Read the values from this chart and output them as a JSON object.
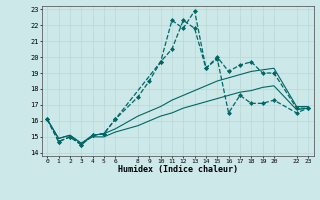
{
  "xlabel": "Humidex (Indice chaleur)",
  "bg_color": "#cde8e8",
  "grid_color": "#b8d8d8",
  "line_color": "#006666",
  "xlim": [
    -0.5,
    23.5
  ],
  "ylim": [
    13.8,
    23.2
  ],
  "xticks": [
    0,
    1,
    2,
    3,
    4,
    5,
    6,
    8,
    9,
    10,
    11,
    12,
    13,
    14,
    15,
    16,
    17,
    18,
    19,
    20,
    22,
    23
  ],
  "yticks": [
    14,
    15,
    16,
    17,
    18,
    19,
    20,
    21,
    22,
    23
  ],
  "lines": [
    {
      "x": [
        0,
        1,
        2,
        3,
        4,
        5,
        6,
        10,
        11,
        12,
        13,
        14,
        15,
        16,
        17,
        18,
        19,
        20,
        22,
        23
      ],
      "y": [
        16.1,
        14.7,
        15.0,
        14.5,
        15.1,
        15.2,
        16.1,
        19.7,
        22.3,
        21.8,
        22.9,
        19.3,
        20.0,
        19.1,
        19.5,
        19.7,
        19.0,
        19.0,
        16.8,
        16.8
      ],
      "marker": "D",
      "markersize": 2.0,
      "linewidth": 0.9,
      "linestyle": "--"
    },
    {
      "x": [
        0,
        1,
        2,
        3,
        4,
        5,
        6,
        8,
        9,
        10,
        11,
        12,
        13,
        14,
        15,
        16,
        17,
        18,
        19,
        20,
        22,
        23
      ],
      "y": [
        16.1,
        14.7,
        15.0,
        14.5,
        15.1,
        15.2,
        16.1,
        17.5,
        18.5,
        19.7,
        20.5,
        22.3,
        21.8,
        19.3,
        19.9,
        16.5,
        17.6,
        17.1,
        17.1,
        17.3,
        16.5,
        16.8
      ],
      "marker": "D",
      "markersize": 2.0,
      "linewidth": 0.9,
      "linestyle": "--"
    },
    {
      "x": [
        0,
        1,
        2,
        3,
        4,
        5,
        6,
        8,
        9,
        10,
        11,
        12,
        13,
        14,
        15,
        16,
        17,
        18,
        19,
        20,
        22,
        23
      ],
      "y": [
        16.1,
        14.9,
        15.1,
        14.6,
        15.1,
        15.2,
        15.5,
        16.3,
        16.6,
        16.9,
        17.3,
        17.6,
        17.9,
        18.2,
        18.5,
        18.7,
        18.9,
        19.1,
        19.2,
        19.3,
        16.9,
        16.9
      ],
      "marker": null,
      "markersize": 0,
      "linewidth": 0.8,
      "linestyle": "-"
    },
    {
      "x": [
        0,
        1,
        2,
        3,
        4,
        5,
        6,
        8,
        9,
        10,
        11,
        12,
        13,
        14,
        15,
        16,
        17,
        18,
        19,
        20,
        22,
        23
      ],
      "y": [
        16.1,
        14.9,
        15.1,
        14.6,
        15.0,
        15.0,
        15.3,
        15.7,
        16.0,
        16.3,
        16.5,
        16.8,
        17.0,
        17.2,
        17.4,
        17.6,
        17.8,
        17.9,
        18.1,
        18.2,
        16.7,
        16.8
      ],
      "marker": null,
      "markersize": 0,
      "linewidth": 0.8,
      "linestyle": "-"
    }
  ]
}
